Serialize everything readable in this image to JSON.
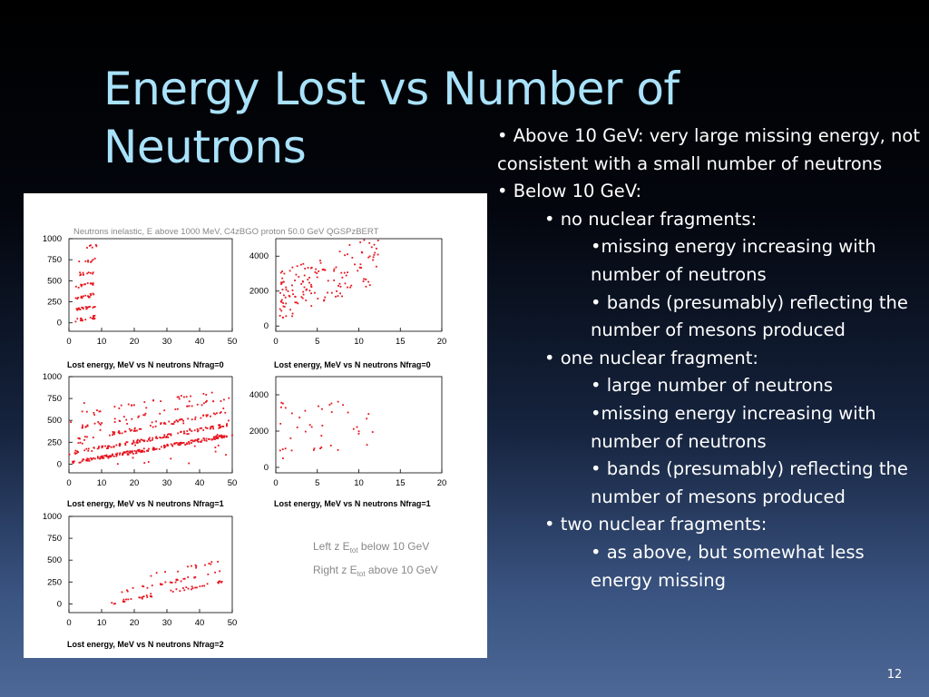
{
  "slide": {
    "title": "Energy Lost vs Number of Neutrons",
    "page_number": "12",
    "colors": {
      "title": "#a9e2fb",
      "marker": "#e8141e"
    }
  },
  "bullets": [
    {
      "level": 0,
      "text": "• Above 10 GeV: very large missing energy, not consistent with a small number of neutrons"
    },
    {
      "level": 0,
      "text": "• Below 10 GeV:"
    },
    {
      "level": 1,
      "text": "• no nuclear fragments:"
    },
    {
      "level": 2,
      "text": "•missing energy increasing with number of neutrons"
    },
    {
      "level": 2,
      "text": "• bands (presumably) reflecting the number of mesons produced"
    },
    {
      "level": 1,
      "text": "• one nuclear fragment:"
    },
    {
      "level": 2,
      "text": "• large number of neutrons"
    },
    {
      "level": 2,
      "text": "•missing energy increasing with number of neutrons"
    },
    {
      "level": 2,
      "text": "• bands (presumably) reflecting the number of mesons produced"
    },
    {
      "level": 1,
      "text": "• two nuclear fragments:"
    },
    {
      "level": 2,
      "text": "• as above, but somewhat less energy missing"
    }
  ],
  "figure": {
    "header": "Neutrons inelastic, E above 1000 MeV,  C4zBGO proton 50.0 GeV QGSPzBERT",
    "legend": {
      "left": {
        "pre": "Left  z E",
        "sub": "tot",
        "post": " below 10 GeV"
      },
      "right": {
        "pre": "Right z E",
        "sub": "tot",
        "post": " above 10 GeV"
      }
    }
  },
  "chart_data": [
    {
      "id": "left-nfrag0",
      "type": "scatter",
      "xlabel": "Lost energy, MeV vs N neutrons Nfrag=0",
      "xticks": [
        "0",
        "10",
        "20",
        "30",
        "40",
        "50"
      ],
      "yticks": [
        "1000",
        "750",
        "500",
        "250",
        "0"
      ],
      "xlim": [
        0,
        50
      ],
      "ylim": [
        -100,
        1000
      ],
      "bands": [
        {
          "x": [
            2,
            8
          ],
          "y0": 20,
          "slope": 6,
          "n": 20
        },
        {
          "x": [
            2,
            8
          ],
          "y0": 150,
          "slope": 6,
          "n": 20
        },
        {
          "x": [
            2,
            8
          ],
          "y0": 285,
          "slope": 6,
          "n": 20
        },
        {
          "x": [
            2,
            8
          ],
          "y0": 420,
          "slope": 6,
          "n": 16
        },
        {
          "x": [
            3,
            8
          ],
          "y0": 560,
          "slope": 6,
          "n": 12
        },
        {
          "x": [
            3,
            8
          ],
          "y0": 700,
          "slope": 6,
          "n": 8
        },
        {
          "x": [
            4,
            9
          ],
          "y0": 880,
          "slope": 4,
          "n": 6
        }
      ]
    },
    {
      "id": "right-nfrag0",
      "type": "scatter",
      "xlabel": "Lost energy, MeV vs N neutrons Nfrag=0",
      "xticks": [
        "0",
        "5",
        "10",
        "15",
        "20"
      ],
      "yticks": [
        "4000",
        "2000",
        "0"
      ],
      "xlim": [
        0,
        20
      ],
      "ylim": [
        -300,
        5000
      ],
      "cloud": {
        "x": [
          0.5,
          12.5
        ],
        "y": [
          200,
          3800
        ],
        "slope": 180,
        "n": 150
      }
    },
    {
      "id": "left-nfrag1",
      "type": "scatter",
      "xlabel": "Lost energy, MeV vs N neutrons Nfrag=1",
      "xticks": [
        "0",
        "10",
        "20",
        "30",
        "40",
        "50"
      ],
      "yticks": [
        "1000",
        "750",
        "500",
        "250",
        "0"
      ],
      "xlim": [
        0,
        50
      ],
      "ylim": [
        -100,
        1000
      ],
      "bands": [
        {
          "x": [
            1,
            49
          ],
          "y0": 10,
          "slope": 6.5,
          "n": 190
        },
        {
          "x": [
            1,
            49
          ],
          "y0": 120,
          "slope": 6.7,
          "n": 120
        },
        {
          "x": [
            2,
            49
          ],
          "y0": 260,
          "slope": 6.8,
          "n": 70
        },
        {
          "x": [
            2,
            49
          ],
          "y0": 400,
          "slope": 7,
          "n": 40
        },
        {
          "x": [
            3,
            48
          ],
          "y0": 560,
          "slope": 6,
          "n": 25
        }
      ],
      "cloud": {
        "x": [
          0,
          50
        ],
        "y": [
          0,
          950
        ],
        "slope": 0,
        "n": 40
      }
    },
    {
      "id": "right-nfrag1",
      "type": "scatter",
      "xlabel": "Lost energy, MeV vs N neutrons Nfrag=1",
      "xticks": [
        "0",
        "5",
        "10",
        "15",
        "20"
      ],
      "yticks": [
        "4000",
        "2000",
        "0"
      ],
      "xlim": [
        0,
        20
      ],
      "ylim": [
        -300,
        5000
      ],
      "cloud": {
        "x": [
          0.5,
          12
        ],
        "y": [
          500,
          4400
        ],
        "slope": 0,
        "n": 42
      }
    },
    {
      "id": "left-nfrag2",
      "type": "scatter",
      "xlabel": "Lost energy, MeV vs N neutrons Nfrag=2",
      "xticks": [
        "0",
        "10",
        "20",
        "30",
        "40",
        "50"
      ],
      "yticks": [
        "1000",
        "750",
        "500",
        "250",
        "0"
      ],
      "xlim": [
        0,
        50
      ],
      "ylim": [
        -100,
        1000
      ],
      "bands": [
        {
          "x": [
            13,
            48
          ],
          "y0": -80,
          "slope": 7,
          "n": 45
        },
        {
          "x": [
            16,
            48
          ],
          "y0": 20,
          "slope": 7.5,
          "n": 30
        },
        {
          "x": [
            25,
            46
          ],
          "y0": 120,
          "slope": 8,
          "n": 14
        }
      ]
    }
  ]
}
